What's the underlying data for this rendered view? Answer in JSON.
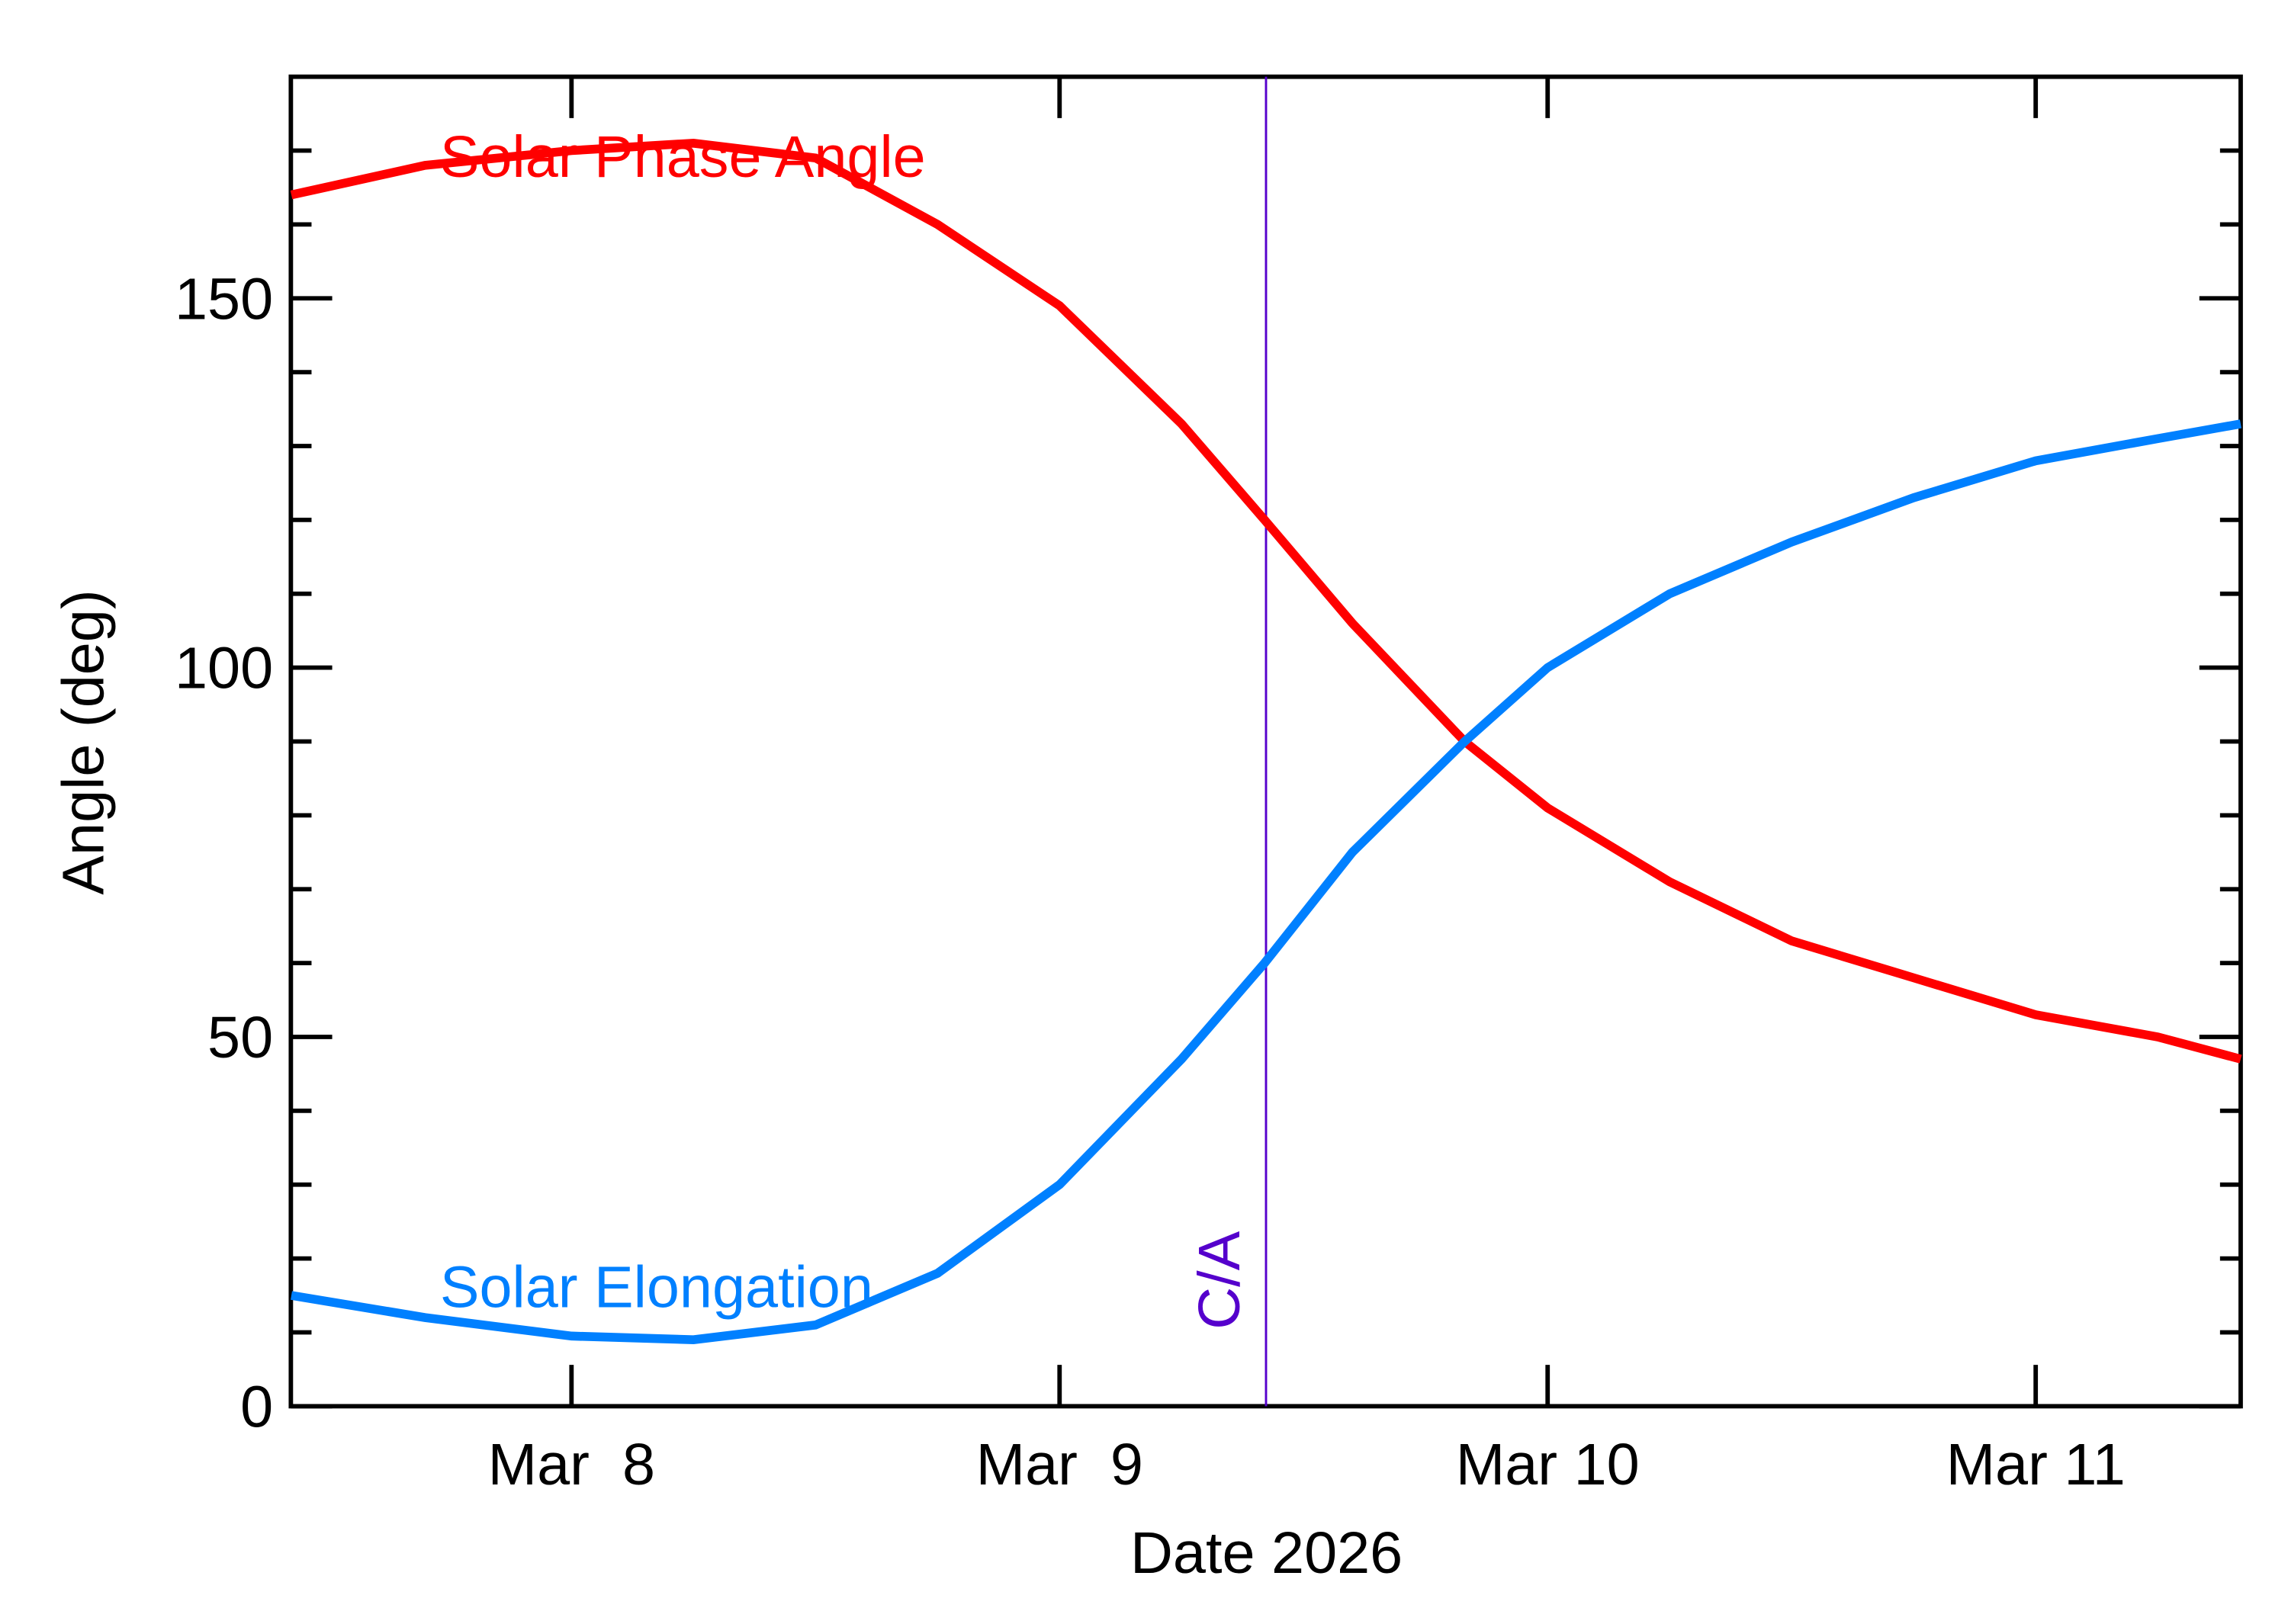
{
  "chart_data": {
    "type": "line",
    "xlabel": "Date 2026",
    "ylabel": "Angle (deg)",
    "xlim": [
      7.425,
      11.42
    ],
    "ylim": [
      0,
      180
    ],
    "xticks": [
      {
        "value": 8,
        "label": "Mar  8"
      },
      {
        "value": 9,
        "label": "Mar  9"
      },
      {
        "value": 10,
        "label": "Mar 10"
      },
      {
        "value": 11,
        "label": "Mar 11"
      }
    ],
    "yticks": [
      0,
      50,
      100,
      150
    ],
    "yminorticks": [
      10,
      20,
      30,
      40,
      60,
      70,
      80,
      90,
      110,
      120,
      130,
      140,
      160,
      170
    ],
    "x": [
      7.426,
      7.7,
      8.0,
      8.25,
      8.5,
      8.75,
      9.0,
      9.25,
      9.42,
      9.6,
      9.83,
      10.0,
      10.25,
      10.5,
      10.75,
      11.0,
      11.25,
      11.42
    ],
    "series": [
      {
        "name": "Solar Phase Angle",
        "color": "#ff0000",
        "values": [
          164,
          168,
          170,
          171,
          169,
          160,
          149,
          133,
          120,
          106,
          90,
          81,
          71,
          63,
          58,
          53,
          50,
          47
        ]
      },
      {
        "name": "Solar Elongation",
        "color": "#0080ff",
        "values": [
          15,
          12,
          9.5,
          9,
          11,
          18,
          30,
          47,
          60,
          75,
          90,
          100,
          110,
          117,
          123,
          128,
          131,
          133
        ]
      }
    ],
    "annotation": {
      "text": "C/A",
      "x": 9.423,
      "color": "#5500cc"
    }
  }
}
